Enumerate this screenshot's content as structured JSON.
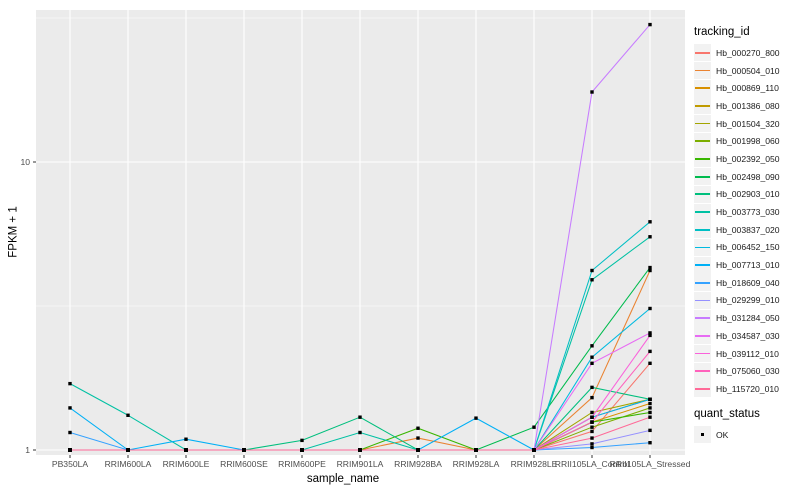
{
  "figure": {
    "x_axis_title": "sample_name",
    "y_axis_title": "FPKM + 1"
  },
  "legend": {
    "tracking_title": "tracking_id",
    "quant_title": "quant_status",
    "quant_ok_label": "OK"
  },
  "colors": {
    "panel_background": "#EBEBEB",
    "grid_line": "#FFFFFF",
    "tick_mark": "#333333",
    "axis_text": "#4D4D4D",
    "point_color": "#000000",
    "legend_key_background": "#F2F2F2"
  },
  "chart_data": {
    "type": "line",
    "title": "",
    "xlabel": "sample_name",
    "ylabel": "FPKM + 1",
    "y_scale": "log10",
    "ylim": [
      0.96,
      33.8
    ],
    "y_major_ticks": [
      1,
      10
    ],
    "y_minor_ticks": [
      3.162,
      31.623
    ],
    "grid": true,
    "legend_position": "right",
    "point_marker": "filled-black-square",
    "quant_status": "OK",
    "categories": [
      "PB350LA",
      "RRIM600LA",
      "RRIM600LE",
      "RRIM600SE",
      "RRIM600PE",
      "RRIM901LA",
      "RRIM928BA",
      "RRIM928LA",
      "RRIM928LE",
      "RRII105LA_Control",
      "RRII105LA_Stressed"
    ],
    "series": [
      {
        "name": "Hb_000270_800",
        "color": "#F8766D",
        "values": [
          1,
          1,
          1,
          1,
          1,
          1,
          1,
          1,
          1,
          1.16,
          2.0
        ]
      },
      {
        "name": "Hb_000504_010",
        "color": "#EA8331",
        "values": [
          1,
          1,
          1,
          1,
          1,
          1,
          1.1,
          1,
          1,
          1.52,
          4.2
        ]
      },
      {
        "name": "Hb_000869_110",
        "color": "#D89000",
        "values": [
          1,
          1,
          1,
          1,
          1,
          1,
          1,
          1,
          1,
          1.25,
          1.45
        ]
      },
      {
        "name": "Hb_001386_080",
        "color": "#C09B00",
        "values": [
          1,
          1,
          1,
          1,
          1,
          1,
          1,
          1,
          1,
          1.3,
          1.5
        ]
      },
      {
        "name": "Hb_001504_320",
        "color": "#A3A500",
        "values": [
          1,
          1,
          1,
          1,
          1,
          1,
          1,
          1,
          1,
          1.35,
          1.5
        ]
      },
      {
        "name": "Hb_001998_060",
        "color": "#7CAE00",
        "values": [
          1,
          1,
          1,
          1,
          1,
          1,
          1,
          1,
          1,
          1.2,
          1.4
        ]
      },
      {
        "name": "Hb_002392_050",
        "color": "#39B600",
        "values": [
          1,
          1,
          1,
          1,
          1,
          1,
          1.19,
          1,
          1,
          1.25,
          1.35
        ]
      },
      {
        "name": "Hb_002498_090",
        "color": "#00BB4E",
        "values": [
          1,
          1,
          1,
          1,
          1,
          1,
          1,
          1,
          1.2,
          2.3,
          4.3
        ]
      },
      {
        "name": "Hb_002903_010",
        "color": "#00BF7D",
        "values": [
          1,
          1,
          1,
          1,
          1.08,
          1.3,
          1,
          1,
          1,
          1.65,
          1.5
        ]
      },
      {
        "name": "Hb_003773_030",
        "color": "#00C1A3",
        "values": [
          1.7,
          1.32,
          1,
          1,
          1,
          1.15,
          1,
          1,
          1,
          3.9,
          5.5
        ]
      },
      {
        "name": "Hb_003837_020",
        "color": "#00BFC4",
        "values": [
          1,
          1,
          1,
          1,
          1,
          1,
          1,
          1,
          1,
          4.2,
          6.2
        ]
      },
      {
        "name": "Hb_006452_150",
        "color": "#00BAE0",
        "values": [
          1,
          1,
          1,
          1,
          1,
          1,
          1,
          1,
          1,
          2.1,
          3.1
        ]
      },
      {
        "name": "Hb_007713_010",
        "color": "#00B0F6",
        "values": [
          1.4,
          1,
          1.09,
          1,
          1,
          1,
          1,
          1.29,
          1,
          1.3,
          1.5
        ]
      },
      {
        "name": "Hb_018609_040",
        "color": "#35A2FF",
        "values": [
          1.15,
          1,
          1,
          1,
          1,
          1,
          1,
          1,
          1,
          1.02,
          1.06
        ]
      },
      {
        "name": "Hb_029299_010",
        "color": "#9590FF",
        "values": [
          1,
          1,
          1,
          1,
          1,
          1,
          1,
          1,
          1,
          1.05,
          1.17
        ]
      },
      {
        "name": "Hb_031284_050",
        "color": "#C77CFF",
        "values": [
          1,
          1,
          1,
          1,
          1,
          1,
          1,
          1,
          1,
          17.5,
          30.0
        ]
      },
      {
        "name": "Hb_034587_030",
        "color": "#E76BF3",
        "values": [
          1,
          1,
          1,
          1,
          1,
          1,
          1,
          1,
          1,
          2.0,
          2.55
        ]
      },
      {
        "name": "Hb_039112_010",
        "color": "#FA62DB",
        "values": [
          1,
          1,
          1,
          1,
          1,
          1,
          1,
          1,
          1,
          1.3,
          2.5
        ]
      },
      {
        "name": "Hb_075060_030",
        "color": "#FF62BC",
        "values": [
          1,
          1,
          1,
          1,
          1,
          1,
          1,
          1,
          1,
          1.25,
          2.2
        ]
      },
      {
        "name": "Hb_115720_010",
        "color": "#FF6A98",
        "values": [
          1,
          1,
          1,
          1,
          1,
          1,
          1,
          1,
          1,
          1.1,
          1.3
        ]
      }
    ]
  }
}
